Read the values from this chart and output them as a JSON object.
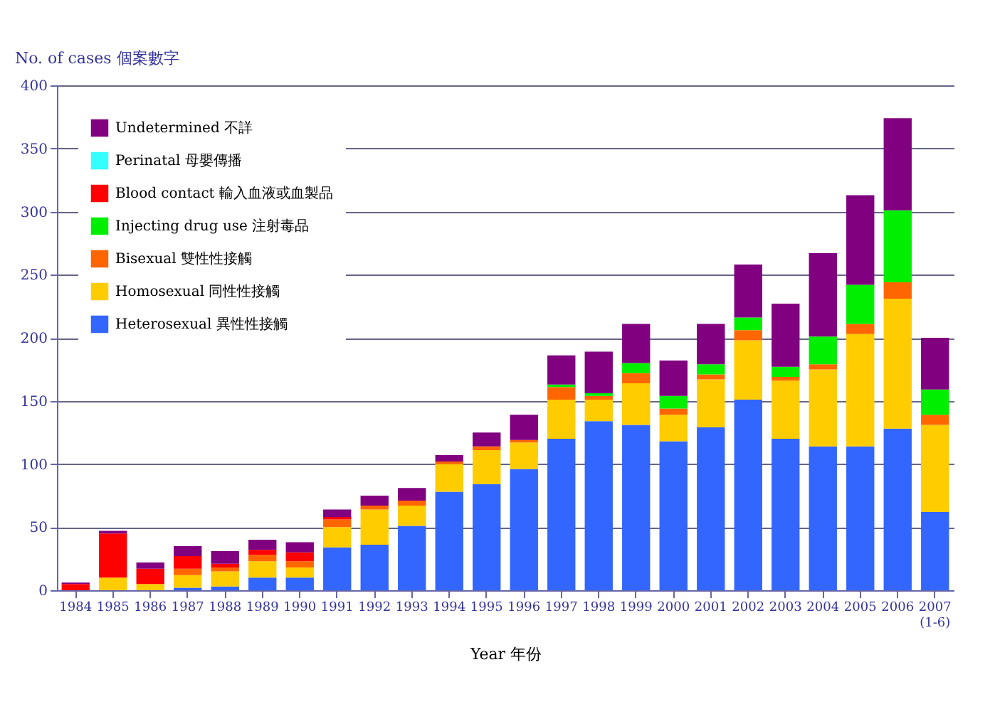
{
  "chart_data": {
    "type": "bar",
    "stacked": true,
    "xlabel": "Year 年份",
    "ylabel": "No. of cases 個案數字",
    "categories": [
      "1984",
      "1985",
      "1986",
      "1987",
      "1988",
      "1989",
      "1990",
      "1991",
      "1992",
      "1993",
      "1994",
      "1995",
      "1996",
      "1997",
      "1998",
      "1999",
      "2000",
      "2001",
      "2002",
      "2003",
      "2004",
      "2005",
      "2006",
      "2007 (1-6)"
    ],
    "series": [
      {
        "name": "Heterosexual 異性性接觸",
        "color": "#3366ff",
        "values": [
          0,
          0,
          0,
          2,
          3,
          10,
          10,
          34,
          36,
          51,
          78,
          84,
          96,
          120,
          134,
          131,
          118,
          129,
          151,
          120,
          114,
          114,
          128,
          62
        ]
      },
      {
        "name": "Homosexual 同性性接觸",
        "color": "#ffcc00",
        "values": [
          0,
          10,
          5,
          10,
          12,
          13,
          8,
          16,
          28,
          16,
          22,
          27,
          21,
          31,
          17,
          33,
          21,
          38,
          47,
          46,
          61,
          89,
          103,
          69
        ]
      },
      {
        "name": "Bisexual 雙性性接觸",
        "color": "#ff6600",
        "values": [
          0,
          0,
          0,
          5,
          3,
          5,
          5,
          6,
          3,
          4,
          2,
          3,
          2,
          10,
          3,
          8,
          5,
          4,
          8,
          3,
          4,
          8,
          13,
          8
        ]
      },
      {
        "name": "Injecting drug use 注射毒品",
        "color": "#00ee00",
        "values": [
          0,
          0,
          0,
          0,
          0,
          0,
          0,
          0,
          0,
          0,
          0,
          0,
          0,
          2,
          2,
          8,
          10,
          8,
          10,
          8,
          22,
          31,
          57,
          20
        ]
      },
      {
        "name": "Blood contact 輸入血液或血製品",
        "color": "#ff0000",
        "values": [
          5,
          35,
          12,
          10,
          3,
          4,
          7,
          2,
          0,
          0,
          0,
          0,
          0,
          0,
          0,
          0,
          0,
          0,
          0,
          0,
          0,
          0,
          0,
          0
        ]
      },
      {
        "name": "Perinatal 母嬰傳播",
        "color": "#33ffff",
        "values": [
          0,
          0,
          0,
          0,
          0,
          0,
          0,
          0,
          0,
          0,
          0,
          0,
          0,
          0,
          0,
          0,
          0,
          0,
          0,
          0,
          0,
          0,
          0,
          0
        ]
      },
      {
        "name": "Undetermined 不詳",
        "color": "#800080",
        "values": [
          1,
          2,
          5,
          8,
          10,
          8,
          8,
          6,
          8,
          10,
          5,
          11,
          20,
          23,
          33,
          31,
          28,
          32,
          42,
          50,
          66,
          71,
          73,
          41
        ]
      }
    ],
    "ylim": [
      0,
      400
    ],
    "yticks": [
      0,
      50,
      100,
      150,
      200,
      250,
      300,
      350,
      400
    ],
    "grid": "y",
    "legend": "top left"
  }
}
